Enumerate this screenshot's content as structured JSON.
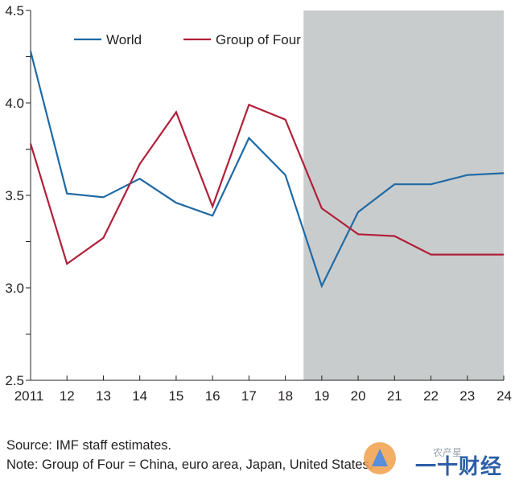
{
  "chart_data": {
    "type": "line",
    "x": [
      "2011",
      "12",
      "13",
      "14",
      "15",
      "16",
      "17",
      "18",
      "19",
      "20",
      "21",
      "22",
      "23",
      "24"
    ],
    "series": [
      {
        "name": "World",
        "color": "#1f6aa5",
        "values": [
          4.28,
          3.51,
          3.49,
          3.59,
          3.46,
          3.39,
          3.81,
          3.61,
          3.01,
          3.41,
          3.56,
          3.56,
          3.61,
          3.62
        ]
      },
      {
        "name": "Group of Four",
        "color": "#b0203a",
        "values": [
          3.78,
          3.13,
          3.27,
          3.67,
          3.95,
          3.44,
          3.99,
          3.91,
          3.43,
          3.29,
          3.28,
          3.18,
          3.18,
          3.18
        ]
      }
    ],
    "ylim": [
      2.5,
      4.5
    ],
    "yticks": [
      "2.5",
      "3.0",
      "3.5",
      "4.0",
      "4.5"
    ],
    "projection_shading": {
      "from": "18.5",
      "to": "24",
      "color": "#c9cccd"
    },
    "legend_position": "top-left",
    "grid": false
  },
  "source": "Source: IMF staff estimates.",
  "note": "Note: Group of Four = China, euro area, Japan, United States.",
  "watermark": {
    "line1": "农产星",
    "line2": "一十财经"
  }
}
